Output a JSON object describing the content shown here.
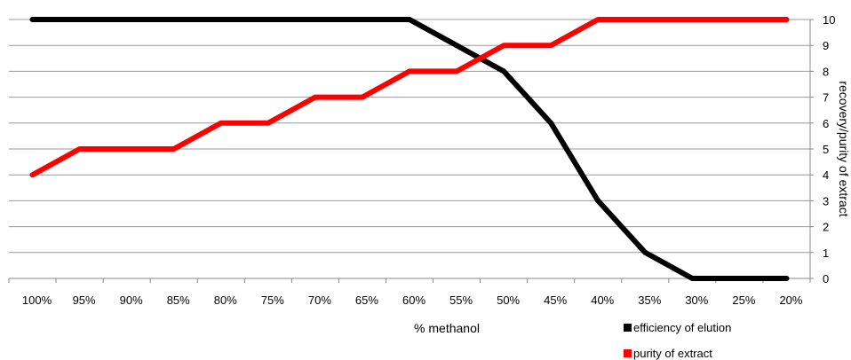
{
  "chart_data": {
    "type": "line",
    "xlabel": "% methanol",
    "ylabel": "recovery/purity of extract",
    "categories": [
      "100%",
      "95%",
      "90%",
      "85%",
      "80%",
      "75%",
      "70%",
      "65%",
      "60%",
      "55%",
      "50%",
      "45%",
      "40%",
      "35%",
      "30%",
      "25%",
      "20%"
    ],
    "y_ticks": [
      "0",
      "1",
      "2",
      "3",
      "4",
      "5",
      "6",
      "7",
      "8",
      "9",
      "10"
    ],
    "ylim": [
      0,
      10
    ],
    "y_axis_side": "right",
    "grid": true,
    "legend_position": "bottom-right",
    "series": [
      {
        "name": "efficiency of elution",
        "color": "#000000",
        "values": [
          10,
          10,
          10,
          10,
          10,
          10,
          10,
          10,
          10,
          9,
          8,
          6,
          3,
          1,
          0,
          0,
          0
        ]
      },
      {
        "name": "purity of extract",
        "color": "#ff0000",
        "values": [
          4,
          5,
          5,
          5,
          6,
          6,
          7,
          7,
          8,
          8,
          9,
          9,
          10,
          10,
          10,
          10,
          10
        ]
      }
    ]
  }
}
